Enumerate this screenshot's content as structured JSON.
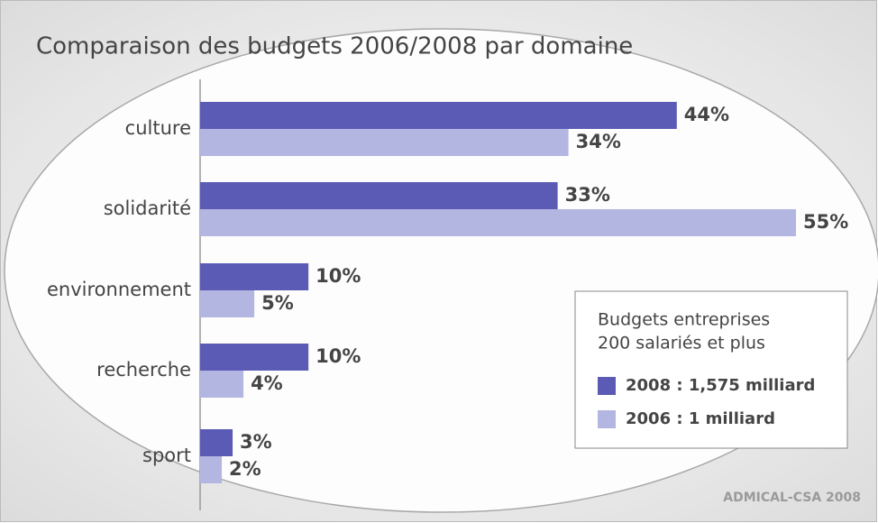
{
  "chart_data": {
    "type": "bar",
    "orientation": "horizontal",
    "title": "Comparaison des budgets 2006/2008 par domaine",
    "categories": [
      "culture",
      "solidarité",
      "environnement",
      "recherche",
      "sport"
    ],
    "series": [
      {
        "name": "2008 : 1,575 milliard",
        "color": "#5b5bb5",
        "values": [
          44,
          33,
          10,
          10,
          3
        ],
        "value_labels": [
          "44%",
          "33%",
          "10%",
          "10%",
          "3%"
        ]
      },
      {
        "name": "2006 : 1 milliard",
        "color": "#b4b6e2",
        "values": [
          34,
          55,
          5,
          4,
          2
        ],
        "value_labels": [
          "34%",
          "55%",
          "5%",
          "4%",
          "2%"
        ]
      }
    ],
    "legend_title": [
      "Budgets entreprises",
      "200 salariés et plus"
    ],
    "legend_position": "lower right",
    "source": "ADMICAL-CSA 2008"
  }
}
